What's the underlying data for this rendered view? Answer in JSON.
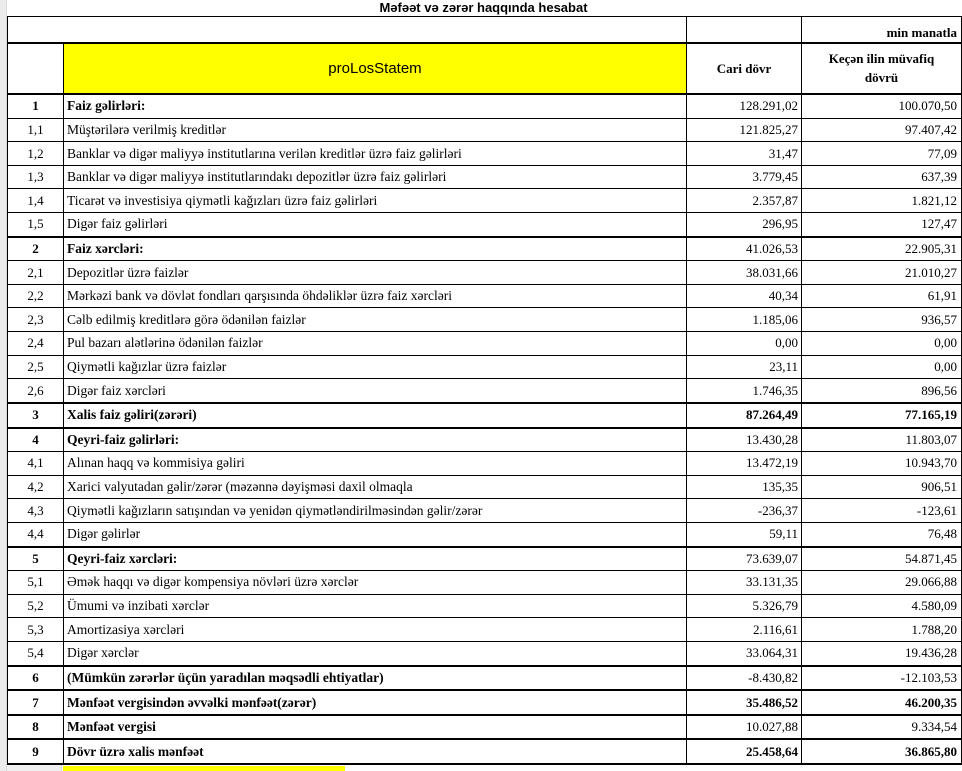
{
  "page": {
    "title": "Məfəət və zərər haqqında hesabat",
    "unit_note": "min manatla"
  },
  "table": {
    "header": {
      "statement_label": "proLosStatem",
      "col_current": "Cari dövr",
      "col_previous": "Keçən ilin müvafiq dövrü"
    },
    "colors": {
      "header_fill": "#ffff00",
      "border": "#000000"
    },
    "rows": [
      {
        "no": "1",
        "label": "Faiz gəlirləri:",
        "current": "128.291,02",
        "previous": "100.070,50",
        "group": true,
        "values_bold": false
      },
      {
        "no": "1,1",
        "label": "Müştərilərə verilmiş kreditlər",
        "current": "121.825,27",
        "previous": "97.407,42",
        "group": false,
        "values_bold": false
      },
      {
        "no": "1,2",
        "label": "Banklar və digər maliyyə institutlarına verilən kreditlər üzrə faiz gəlirləri",
        "current": "31,47",
        "previous": "77,09",
        "group": false,
        "values_bold": false
      },
      {
        "no": "1,3",
        "label": "Banklar və digər maliyyə institutlarındakı depozitlər üzrə faiz gəlirləri",
        "current": "3.779,45",
        "previous": "637,39",
        "group": false,
        "values_bold": false
      },
      {
        "no": "1,4",
        "label": "Ticarət və investisiya qiymətli kağızları üzrə faiz gəlirləri",
        "current": "2.357,87",
        "previous": "1.821,12",
        "group": false,
        "values_bold": false
      },
      {
        "no": "1,5",
        "label": "Digər faiz gəlirləri",
        "current": "296,95",
        "previous": "127,47",
        "group": false,
        "values_bold": false
      },
      {
        "no": "2",
        "label": "Faiz xərcləri:",
        "current": "41.026,53",
        "previous": "22.905,31",
        "group": true,
        "values_bold": false
      },
      {
        "no": "2,1",
        "label": "Depozitlər üzrə faizlər",
        "current": "38.031,66",
        "previous": "21.010,27",
        "group": false,
        "values_bold": false
      },
      {
        "no": "2,2",
        "label": "Mərkəzi bank və dövlət fondları qarşısında öhdəliklər üzrə faiz xərcləri",
        "current": "40,34",
        "previous": "61,91",
        "group": false,
        "values_bold": false
      },
      {
        "no": "2,3",
        "label": "Cəlb edilmiş kreditlərə görə ödənilən faizlər",
        "current": "1.185,06",
        "previous": "936,57",
        "group": false,
        "values_bold": false
      },
      {
        "no": "2,4",
        "label": "Pul bazarı alətlərinə ödənilən faizlər",
        "current": "0,00",
        "previous": "0,00",
        "group": false,
        "values_bold": false
      },
      {
        "no": "2,5",
        "label": "Qiymətli kağızlar üzrə faizlər",
        "current": "23,11",
        "previous": "0,00",
        "group": false,
        "values_bold": false
      },
      {
        "no": "2,6",
        "label": "Digər faiz xərcləri",
        "current": "1.746,35",
        "previous": "896,56",
        "group": false,
        "values_bold": false
      },
      {
        "no": "3",
        "label": "Xalis faiz gəliri(zərəri)",
        "current": "87.264,49",
        "previous": "77.165,19",
        "group": true,
        "values_bold": true
      },
      {
        "no": "4",
        "label": "Qeyri-faiz gəlirləri:",
        "current": "13.430,28",
        "previous": "11.803,07",
        "group": true,
        "values_bold": false
      },
      {
        "no": "4,1",
        "label": "Alınan haqq və kommisiya gəliri",
        "current": "13.472,19",
        "previous": "10.943,70",
        "group": false,
        "values_bold": false
      },
      {
        "no": "4,2",
        "label": "Xarici valyutadan gəlir/zərər (məzənnə dəyişməsi daxil olmaqla",
        "current": "135,35",
        "previous": "906,51",
        "group": false,
        "values_bold": false
      },
      {
        "no": "4,3",
        "label": "Qiymətli kağızların satışından və yenidən qiymətləndirilməsindən gəlir/zərər",
        "current": "-236,37",
        "previous": "-123,61",
        "group": false,
        "values_bold": false
      },
      {
        "no": "4,4",
        "label": "Digər gəlirlər",
        "current": "59,11",
        "previous": "76,48",
        "group": false,
        "values_bold": false
      },
      {
        "no": "5",
        "label": "Qeyri-faiz xərcləri:",
        "current": "73.639,07",
        "previous": "54.871,45",
        "group": true,
        "values_bold": false
      },
      {
        "no": "5,1",
        "label": "Əmək haqqı və digər kompensiya növləri üzrə xərclər",
        "current": "33.131,35",
        "previous": "29.066,88",
        "group": false,
        "values_bold": false
      },
      {
        "no": "5,2",
        "label": "Ümumi və inzibati xərclər",
        "current": "5.326,79",
        "previous": "4.580,09",
        "group": false,
        "values_bold": false
      },
      {
        "no": "5,3",
        "label": "Amortizasiya xərcləri",
        "current": "2.116,61",
        "previous": "1.788,20",
        "group": false,
        "values_bold": false
      },
      {
        "no": "5,4",
        "label": "Digər xərclər",
        "current": "33.064,31",
        "previous": "19.436,28",
        "group": false,
        "values_bold": false
      },
      {
        "no": "6",
        "label": "(Mümkün zərərlər üçün yaradılan məqsədli ehtiyatlar)",
        "current": "-8.430,82",
        "previous": "-12.103,53",
        "group": true,
        "values_bold": false
      },
      {
        "no": "7",
        "label": "Mənfəət vergisindən əvvəlki mənfəət(zərər)",
        "current": "35.486,52",
        "previous": "46.200,35",
        "group": true,
        "values_bold": true
      },
      {
        "no": "8",
        "label": "Mənfəət vergisi",
        "current": "10.027,88",
        "previous": "9.334,54",
        "group": true,
        "values_bold": false
      },
      {
        "no": "9",
        "label": "Dövr üzrə xalis mənfəət",
        "current": "25.458,64",
        "previous": "36.865,80",
        "group": true,
        "values_bold": true
      }
    ]
  }
}
